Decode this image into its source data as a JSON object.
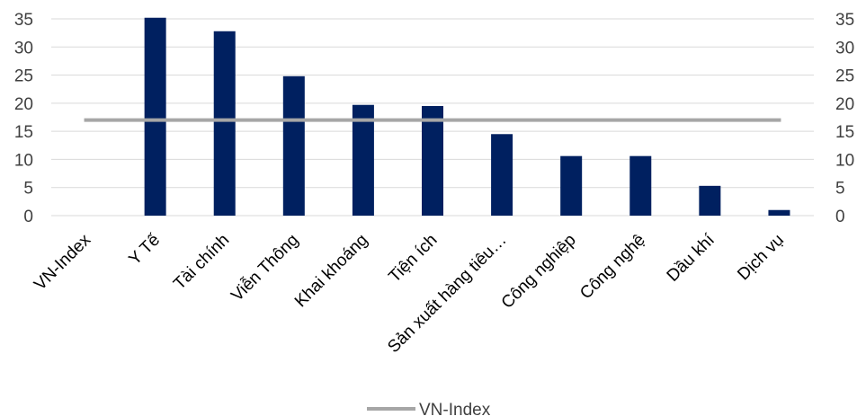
{
  "chart_data": {
    "type": "bar",
    "categories": [
      "VN-Index",
      "Y Tế",
      "Tài chính",
      "Viễn Thông",
      "Khai khoáng",
      "Tiện ích",
      "Sản xuất hàng tiêu…",
      "Công nghiệp",
      "Công nghệ",
      "Dầu khí",
      "Dịch vụ"
    ],
    "series": [
      {
        "values": [
          0,
          35.2,
          32.8,
          24.8,
          19.7,
          19.5,
          14.5,
          10.6,
          10.6,
          5.3,
          1.0
        ],
        "color": "#002060"
      },
      {
        "name": "VN-Index",
        "type": "line",
        "value": 17.0,
        "color": "#A6A6A6"
      }
    ],
    "ylim": [
      0,
      35
    ],
    "yticks": [
      "0",
      "5",
      "10",
      "15",
      "20",
      "25",
      "30",
      "35"
    ],
    "secondary_ylim": [
      0,
      35
    ],
    "secondary_yticks": [
      "0",
      "5",
      "10",
      "15",
      "20",
      "25",
      "30",
      "35"
    ],
    "grid": true,
    "legend_position": "bottom",
    "legend": [
      "VN-Index"
    ]
  }
}
